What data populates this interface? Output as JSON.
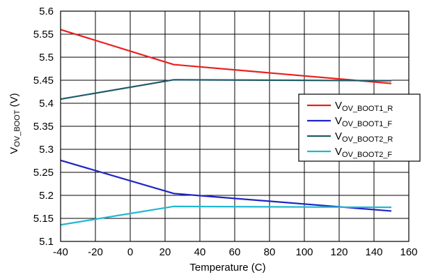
{
  "chart_data": {
    "type": "line",
    "xlabel": "Temperature (C)",
    "ylabel": {
      "main": "V",
      "sub": "OV_BOOT",
      "unit": " (V)"
    },
    "xlim": [
      -40,
      160
    ],
    "ylim": [
      5.1,
      5.6
    ],
    "xticks": [
      -40,
      -20,
      0,
      20,
      40,
      60,
      80,
      100,
      120,
      140,
      160
    ],
    "yticks": [
      5.1,
      5.15,
      5.2,
      5.25,
      5.3,
      5.35,
      5.4,
      5.45,
      5.5,
      5.55,
      5.6
    ],
    "xtick_labels": [
      "-40",
      "-20",
      "0",
      "20",
      "40",
      "60",
      "80",
      "100",
      "120",
      "140",
      "160"
    ],
    "ytick_labels": [
      "5.1",
      "5.15",
      "5.2",
      "5.25",
      "5.3",
      "5.35",
      "5.4",
      "5.45",
      "5.5",
      "5.55",
      "5.6"
    ],
    "grid": true,
    "legend_position": "right",
    "series": [
      {
        "name": "V_OV_BOOT1_R",
        "label_main": "V",
        "label_sub": "OV_BOOT1_R",
        "color": "#e8201e",
        "x": [
          -40,
          25,
          150
        ],
        "y": [
          5.56,
          5.484,
          5.443
        ]
      },
      {
        "name": "V_OV_BOOT1_F",
        "label_main": "V",
        "label_sub": "OV_BOOT1_F",
        "color": "#1f24c8",
        "x": [
          -40,
          25,
          150
        ],
        "y": [
          5.276,
          5.204,
          5.166
        ]
      },
      {
        "name": "V_OV_BOOT2_R",
        "label_main": "V",
        "label_sub": "OV_BOOT2_R",
        "color": "#1e5a68",
        "x": [
          -40,
          25,
          150
        ],
        "y": [
          5.409,
          5.451,
          5.449
        ]
      },
      {
        "name": "V_OV_BOOT2_F",
        "label_main": "V",
        "label_sub": "OV_BOOT2_F",
        "color": "#1fb8d0",
        "x": [
          -40,
          25,
          150
        ],
        "y": [
          5.136,
          5.176,
          5.174
        ]
      }
    ]
  }
}
